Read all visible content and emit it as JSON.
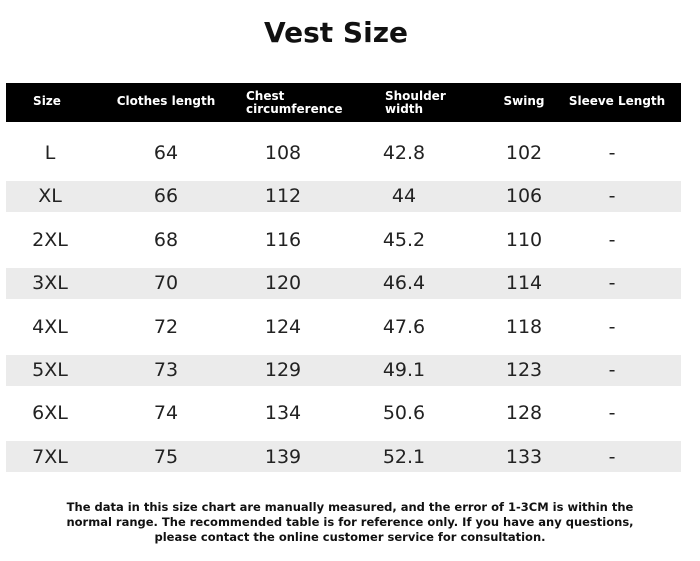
{
  "title": "Vest Size",
  "table": {
    "headers": [
      "Size",
      "Clothes length",
      "Chest circumference",
      "Shoulder width",
      "Swing",
      "Sleeve Length"
    ],
    "rows": [
      [
        "L",
        "64",
        "108",
        "42.8",
        "102",
        "-"
      ],
      [
        "XL",
        "66",
        "112",
        "44",
        "106",
        "-"
      ],
      [
        "2XL",
        "68",
        "116",
        "45.2",
        "110",
        "-"
      ],
      [
        "3XL",
        "70",
        "120",
        "46.4",
        "114",
        "-"
      ],
      [
        "4XL",
        "72",
        "124",
        "47.6",
        "118",
        "-"
      ],
      [
        "5XL",
        "73",
        "129",
        "49.1",
        "123",
        "-"
      ],
      [
        "6XL",
        "74",
        "134",
        "50.6",
        "128",
        "-"
      ],
      [
        "7XL",
        "75",
        "139",
        "52.1",
        "133",
        "-"
      ]
    ]
  },
  "note": "The data in this size chart are manually measured, and the error of 1-3CM is within the normal range. The recommended table is for reference only. If you have any questions, please contact the online customer service for consultation."
}
